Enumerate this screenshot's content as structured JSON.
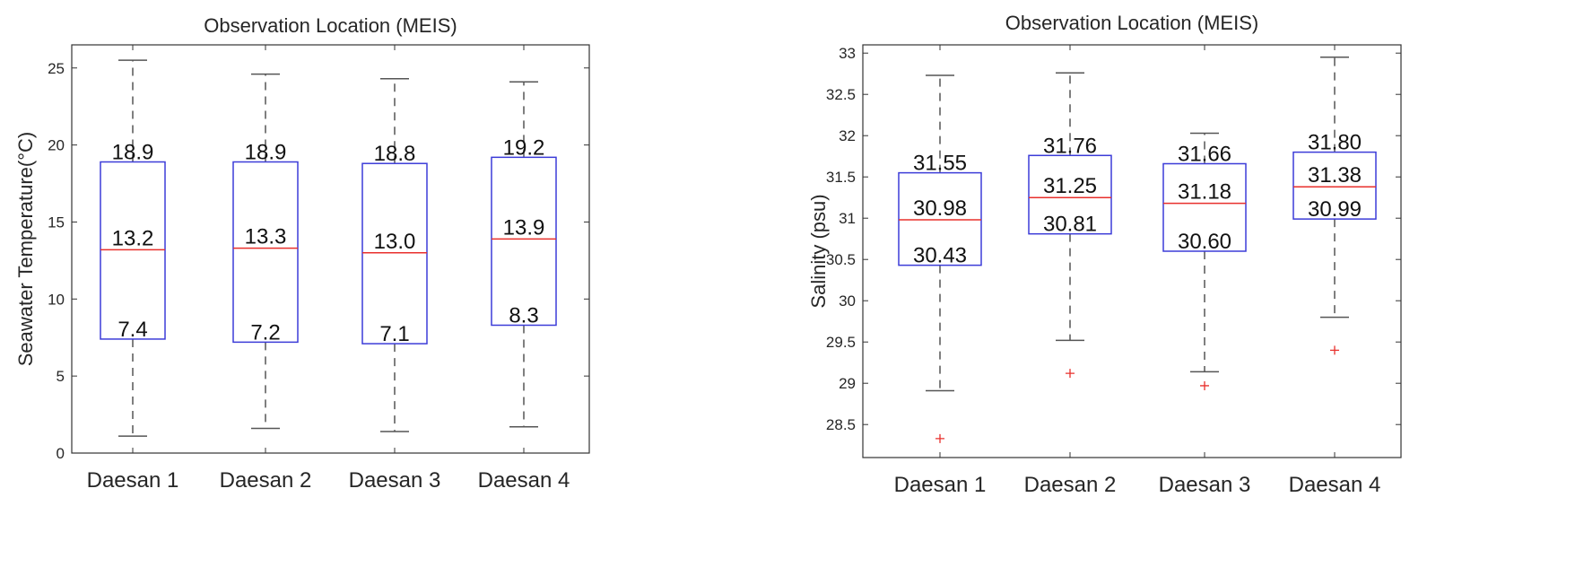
{
  "chart_data": [
    {
      "type": "boxplot",
      "title": "Observation Location (MEIS)",
      "xlabel": "",
      "ylabel": "Seawater Temperature(°C)",
      "ylim": [
        0,
        26.5
      ],
      "yticks": [
        0,
        5,
        10,
        15,
        20,
        25
      ],
      "categories": [
        "Daesan 1",
        "Daesan 2",
        "Daesan 3",
        "Daesan 4"
      ],
      "boxes": [
        {
          "whisker_low": 1.1,
          "q1": 7.4,
          "median": 13.2,
          "q3": 18.9,
          "whisker_high": 25.5,
          "outliers": [],
          "labels": {
            "q1": "7.4",
            "median": "13.2",
            "q3": "18.9"
          }
        },
        {
          "whisker_low": 1.6,
          "q1": 7.2,
          "median": 13.3,
          "q3": 18.9,
          "whisker_high": 24.6,
          "outliers": [],
          "labels": {
            "q1": "7.2",
            "median": "13.3",
            "q3": "18.9"
          }
        },
        {
          "whisker_low": 1.4,
          "q1": 7.1,
          "median": 13.0,
          "q3": 18.8,
          "whisker_high": 24.3,
          "outliers": [],
          "labels": {
            "q1": "7.1",
            "median": "13.0",
            "q3": "18.8"
          }
        },
        {
          "whisker_low": 1.7,
          "q1": 8.3,
          "median": 13.9,
          "q3": 19.2,
          "whisker_high": 24.1,
          "outliers": [],
          "labels": {
            "q1": "8.3",
            "median": "13.9",
            "q3": "19.2"
          }
        }
      ],
      "colors": {
        "box": "#3c3cd8",
        "median": "#e8302c",
        "whisker": "#555555",
        "outlier": "#e8302c"
      },
      "grid": false
    },
    {
      "type": "boxplot",
      "title": "Observation Location (MEIS)",
      "xlabel": "",
      "ylabel": "Salinity (psu)",
      "ylim": [
        28.1,
        33.1
      ],
      "yticks": [
        28.5,
        29,
        29.5,
        30,
        30.5,
        31,
        31.5,
        32,
        32.5,
        33
      ],
      "categories": [
        "Daesan 1",
        "Daesan 2",
        "Daesan 3",
        "Daesan 4"
      ],
      "boxes": [
        {
          "whisker_low": 28.91,
          "q1": 30.43,
          "median": 30.98,
          "q3": 31.55,
          "whisker_high": 32.73,
          "outliers": [
            28.33
          ],
          "labels": {
            "q1": "30.43",
            "median": "30.98",
            "q3": "31.55"
          }
        },
        {
          "whisker_low": 29.52,
          "q1": 30.81,
          "median": 31.25,
          "q3": 31.76,
          "whisker_high": 32.76,
          "outliers": [
            29.12
          ],
          "labels": {
            "q1": "30.81",
            "median": "31.25",
            "q3": "31.76"
          }
        },
        {
          "whisker_low": 29.14,
          "q1": 30.6,
          "median": 31.18,
          "q3": 31.66,
          "whisker_high": 32.03,
          "outliers": [
            28.97
          ],
          "labels": {
            "q1": "30.60",
            "median": "31.18",
            "q3": "31.66"
          }
        },
        {
          "whisker_low": 29.8,
          "q1": 30.99,
          "median": 31.38,
          "q3": 31.8,
          "whisker_high": 32.95,
          "outliers": [
            29.4
          ],
          "labels": {
            "q1": "30.99",
            "median": "31.38",
            "q3": "31.80"
          }
        }
      ],
      "colors": {
        "box": "#3c3cd8",
        "median": "#e8302c",
        "whisker": "#555555",
        "outlier": "#e8302c"
      },
      "grid": false
    }
  ]
}
